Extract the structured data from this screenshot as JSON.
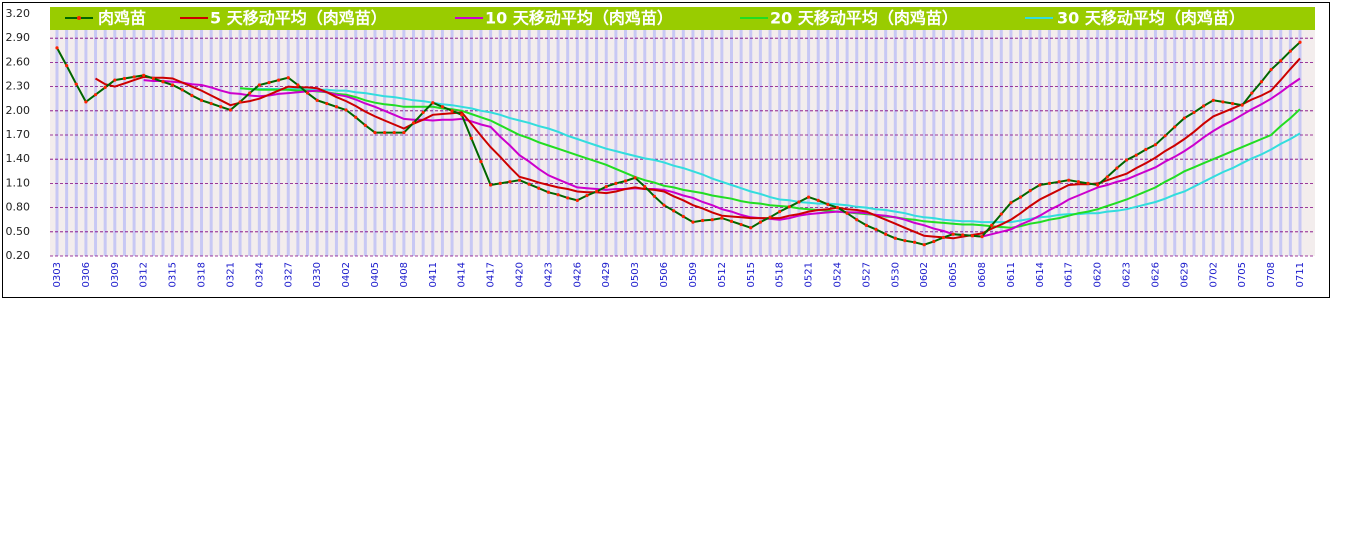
{
  "chart_data": {
    "type": "line",
    "categories": [
      "0303",
      null,
      null,
      "0306",
      null,
      null,
      "0309",
      null,
      null,
      "0312",
      null,
      null,
      "0315",
      null,
      null,
      "0318",
      null,
      null,
      "0321",
      null,
      null,
      "0324",
      null,
      null,
      "0327",
      null,
      null,
      "0330",
      null,
      null,
      "0402",
      null,
      null,
      "0405",
      null,
      null,
      "0408",
      null,
      null,
      "0411",
      null,
      null,
      "0414",
      null,
      null,
      "0417",
      null,
      null,
      "0420",
      null,
      null,
      "0423",
      null,
      null,
      "0426",
      null,
      null,
      "0429",
      null,
      null,
      "0503",
      null,
      null,
      "0506",
      null,
      null,
      "0509",
      null,
      null,
      "0512",
      null,
      null,
      "0515",
      null,
      null,
      "0518",
      null,
      null,
      "0521",
      null,
      null,
      "0524",
      null,
      null,
      "0527",
      null,
      null,
      "0530",
      null,
      null,
      "0602",
      null,
      null,
      "0605",
      null,
      null,
      "0608",
      null,
      null,
      "0611",
      null,
      null,
      "0614",
      null,
      null,
      "0617",
      null,
      null,
      "0620",
      null,
      null,
      "0623",
      null,
      null,
      "0626",
      null,
      null,
      "0629",
      null,
      null,
      "0702",
      null,
      null,
      "0705",
      null,
      null,
      "0708",
      null,
      null,
      "0711"
    ],
    "series": [
      {
        "name": "肉鸡苗",
        "color": "#006600",
        "marker_color": "#ff2200",
        "values": [
          2.78,
          2.56,
          2.33,
          2.11,
          2.2,
          2.29,
          2.38,
          2.4,
          2.42,
          2.44,
          2.4,
          2.36,
          2.32,
          2.26,
          2.19,
          2.13,
          2.09,
          2.05,
          2.01,
          2.11,
          2.22,
          2.32,
          2.35,
          2.38,
          2.41,
          2.32,
          2.22,
          2.13,
          2.09,
          2.05,
          2.01,
          1.92,
          1.82,
          1.73,
          1.73,
          1.73,
          1.73,
          1.85,
          1.98,
          2.1,
          2.05,
          2.0,
          1.95,
          1.66,
          1.37,
          1.08,
          1.1,
          1.12,
          1.14,
          1.09,
          1.04,
          0.99,
          0.96,
          0.92,
          0.89,
          0.95,
          1.0,
          1.06,
          1.1,
          1.13,
          1.17,
          1.06,
          0.94,
          0.83,
          0.76,
          0.69,
          0.62,
          0.64,
          0.65,
          0.67,
          0.63,
          0.59,
          0.55,
          0.62,
          0.68,
          0.75,
          0.81,
          0.87,
          0.93,
          0.89,
          0.84,
          0.8,
          0.73,
          0.65,
          0.58,
          0.53,
          0.47,
          0.42,
          0.39,
          0.37,
          0.34,
          0.38,
          0.43,
          0.47,
          0.46,
          0.45,
          0.44,
          0.58,
          0.72,
          0.86,
          0.93,
          1.01,
          1.08,
          1.1,
          1.12,
          1.14,
          1.12,
          1.1,
          1.08,
          1.18,
          1.29,
          1.39,
          1.45,
          1.52,
          1.58,
          1.69,
          1.8,
          1.91,
          1.98,
          2.06,
          2.13,
          2.11,
          2.09,
          2.07,
          2.22,
          2.36,
          2.51,
          2.62,
          2.74,
          2.85
        ]
      },
      {
        "name": "5 天移动平均（肉鸡苗）",
        "color": "#cc0000",
        "values": [
          null,
          null,
          null,
          null,
          2.4,
          2.33,
          2.3,
          2.34,
          2.38,
          2.42,
          2.41,
          2.41,
          2.4,
          2.35,
          2.3,
          2.25,
          2.19,
          2.13,
          2.07,
          2.1,
          2.12,
          2.15,
          2.2,
          2.25,
          2.3,
          2.29,
          2.29,
          2.28,
          2.23,
          2.17,
          2.12,
          2.06,
          1.99,
          1.93,
          1.88,
          1.83,
          1.78,
          1.84,
          1.89,
          1.95,
          1.96,
          1.97,
          1.98,
          1.84,
          1.69,
          1.55,
          1.43,
          1.3,
          1.18,
          1.15,
          1.11,
          1.08,
          1.05,
          1.03,
          1.0,
          0.99,
          0.99,
          0.98,
          1.0,
          1.03,
          1.05,
          1.03,
          1.02,
          1.0,
          0.94,
          0.89,
          0.83,
          0.79,
          0.74,
          0.7,
          0.69,
          0.68,
          0.67,
          0.67,
          0.67,
          0.67,
          0.7,
          0.72,
          0.75,
          0.77,
          0.78,
          0.8,
          0.78,
          0.77,
          0.75,
          0.7,
          0.65,
          0.6,
          0.55,
          0.5,
          0.45,
          0.44,
          0.43,
          0.42,
          0.44,
          0.46,
          0.48,
          0.54,
          0.59,
          0.65,
          0.73,
          0.82,
          0.9,
          0.96,
          1.02,
          1.08,
          1.09,
          1.09,
          1.1,
          1.14,
          1.18,
          1.22,
          1.29,
          1.35,
          1.42,
          1.5,
          1.57,
          1.65,
          1.74,
          1.84,
          1.93,
          1.98,
          2.03,
          2.08,
          2.14,
          2.19,
          2.25,
          2.38,
          2.52,
          2.65
        ]
      },
      {
        "name": "10 天移动平均（肉鸡苗）",
        "color": "#cc00cc",
        "values": [
          null,
          null,
          null,
          null,
          null,
          null,
          null,
          null,
          null,
          2.38,
          2.37,
          2.37,
          2.36,
          2.35,
          2.33,
          2.32,
          2.29,
          2.25,
          2.22,
          2.21,
          2.19,
          2.18,
          2.19,
          2.21,
          2.22,
          2.23,
          2.24,
          2.25,
          2.23,
          2.2,
          2.18,
          2.14,
          2.09,
          2.05,
          2.0,
          1.95,
          1.9,
          1.89,
          1.89,
          1.88,
          1.89,
          1.89,
          1.9,
          1.87,
          1.83,
          1.8,
          1.68,
          1.57,
          1.45,
          1.37,
          1.28,
          1.2,
          1.15,
          1.1,
          1.05,
          1.04,
          1.03,
          1.02,
          1.03,
          1.03,
          1.04,
          1.03,
          1.03,
          1.02,
          0.99,
          0.95,
          0.92,
          0.87,
          0.83,
          0.78,
          0.75,
          0.71,
          0.68,
          0.67,
          0.66,
          0.65,
          0.67,
          0.7,
          0.72,
          0.73,
          0.74,
          0.75,
          0.74,
          0.74,
          0.73,
          0.71,
          0.7,
          0.68,
          0.65,
          0.61,
          0.58,
          0.54,
          0.51,
          0.47,
          0.46,
          0.45,
          0.44,
          0.47,
          0.5,
          0.53,
          0.59,
          0.64,
          0.7,
          0.77,
          0.83,
          0.9,
          0.95,
          1.0,
          1.05,
          1.08,
          1.12,
          1.15,
          1.2,
          1.25,
          1.3,
          1.37,
          1.43,
          1.5,
          1.58,
          1.67,
          1.75,
          1.82,
          1.88,
          1.95,
          2.02,
          2.08,
          2.15,
          2.23,
          2.32,
          2.4
        ]
      },
      {
        "name": "20 天移动平均（肉鸡苗）",
        "color": "#22dd22",
        "values": [
          null,
          null,
          null,
          null,
          null,
          null,
          null,
          null,
          null,
          null,
          null,
          null,
          null,
          null,
          null,
          null,
          null,
          null,
          null,
          2.28,
          2.27,
          2.26,
          2.26,
          2.26,
          2.26,
          2.25,
          2.25,
          2.24,
          2.23,
          2.21,
          2.2,
          2.17,
          2.13,
          2.1,
          2.08,
          2.07,
          2.05,
          2.05,
          2.05,
          2.05,
          2.03,
          2.02,
          2.0,
          1.96,
          1.92,
          1.88,
          1.82,
          1.76,
          1.7,
          1.66,
          1.61,
          1.57,
          1.53,
          1.49,
          1.45,
          1.41,
          1.37,
          1.33,
          1.28,
          1.23,
          1.18,
          1.14,
          1.11,
          1.07,
          1.05,
          1.02,
          1.0,
          0.98,
          0.95,
          0.93,
          0.91,
          0.88,
          0.86,
          0.85,
          0.83,
          0.82,
          0.81,
          0.79,
          0.78,
          0.77,
          0.76,
          0.75,
          0.74,
          0.73,
          0.72,
          0.71,
          0.69,
          0.68,
          0.66,
          0.65,
          0.63,
          0.62,
          0.61,
          0.6,
          0.59,
          0.59,
          0.58,
          0.57,
          0.56,
          0.55,
          0.57,
          0.6,
          0.62,
          0.65,
          0.67,
          0.7,
          0.73,
          0.75,
          0.78,
          0.82,
          0.86,
          0.9,
          0.95,
          1.0,
          1.05,
          1.12,
          1.18,
          1.25,
          1.3,
          1.35,
          1.4,
          1.45,
          1.5,
          1.55,
          1.6,
          1.65,
          1.7,
          1.81,
          1.91,
          2.02
        ]
      },
      {
        "name": "30 天移动平均（肉鸡苗）",
        "color": "#33dddd",
        "values": [
          null,
          null,
          null,
          null,
          null,
          null,
          null,
          null,
          null,
          null,
          null,
          null,
          null,
          null,
          null,
          null,
          null,
          null,
          null,
          2.28,
          2.27,
          2.27,
          2.27,
          2.27,
          2.27,
          2.27,
          2.26,
          2.26,
          2.26,
          2.25,
          2.25,
          2.23,
          2.22,
          2.2,
          2.18,
          2.17,
          2.15,
          2.13,
          2.12,
          2.1,
          2.08,
          2.07,
          2.05,
          2.03,
          2.0,
          1.98,
          1.95,
          1.91,
          1.88,
          1.85,
          1.81,
          1.78,
          1.74,
          1.69,
          1.65,
          1.61,
          1.57,
          1.53,
          1.5,
          1.47,
          1.44,
          1.41,
          1.39,
          1.36,
          1.32,
          1.29,
          1.25,
          1.21,
          1.16,
          1.12,
          1.08,
          1.04,
          1.0,
          0.97,
          0.93,
          0.9,
          0.89,
          0.87,
          0.86,
          0.85,
          0.85,
          0.84,
          0.83,
          0.81,
          0.8,
          0.78,
          0.77,
          0.75,
          0.73,
          0.7,
          0.68,
          0.67,
          0.65,
          0.64,
          0.63,
          0.63,
          0.62,
          0.62,
          0.62,
          0.62,
          0.64,
          0.66,
          0.68,
          0.69,
          0.71,
          0.72,
          0.72,
          0.73,
          0.73,
          0.75,
          0.76,
          0.78,
          0.81,
          0.84,
          0.87,
          0.91,
          0.96,
          1.0,
          1.06,
          1.12,
          1.18,
          1.24,
          1.29,
          1.35,
          1.41,
          1.46,
          1.52,
          1.59,
          1.65,
          1.72
        ]
      }
    ],
    "ylim": [
      0.2,
      3.2
    ],
    "yticks": [
      {
        "value": 0.2,
        "label": "0.20"
      },
      {
        "value": 0.5,
        "label": "0.50"
      },
      {
        "value": 0.8,
        "label": "0.80"
      },
      {
        "value": 1.1,
        "label": "1.10"
      },
      {
        "value": 1.4,
        "label": "1.40"
      },
      {
        "value": 1.7,
        "label": "1.70"
      },
      {
        "value": 2.0,
        "label": "2.00"
      },
      {
        "value": 2.3,
        "label": "2.30"
      },
      {
        "value": 2.6,
        "label": "2.60"
      },
      {
        "value": 2.9,
        "label": "2.90"
      },
      {
        "value": 3.2,
        "label": "3.20"
      }
    ],
    "grid": true,
    "legend": "top"
  }
}
